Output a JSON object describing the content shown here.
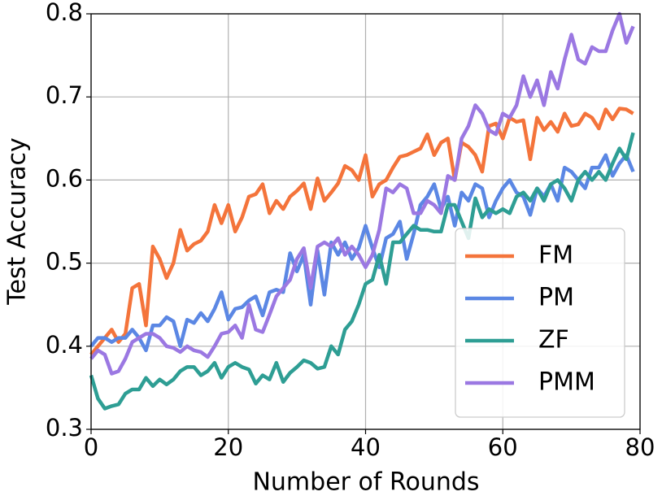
{
  "chart_data": {
    "type": "line",
    "xlabel": "Number of Rounds",
    "ylabel": "Test Accuracy",
    "x": [
      0,
      1,
      2,
      3,
      4,
      5,
      6,
      7,
      8,
      9,
      10,
      11,
      12,
      13,
      14,
      15,
      16,
      17,
      18,
      19,
      20,
      21,
      22,
      23,
      24,
      25,
      26,
      27,
      28,
      29,
      30,
      31,
      32,
      33,
      34,
      35,
      36,
      37,
      38,
      39,
      40,
      41,
      42,
      43,
      44,
      45,
      46,
      47,
      48,
      49,
      50,
      51,
      52,
      53,
      54,
      55,
      56,
      57,
      58,
      59,
      60,
      61,
      62,
      63,
      64,
      65,
      66,
      67,
      68,
      69,
      70,
      71,
      72,
      73,
      74,
      75,
      76,
      77,
      78,
      79
    ],
    "series": [
      {
        "name": "FM",
        "color": "#f4743b",
        "values": [
          0.39,
          0.4,
          0.41,
          0.42,
          0.405,
          0.415,
          0.47,
          0.475,
          0.425,
          0.52,
          0.505,
          0.482,
          0.5,
          0.54,
          0.515,
          0.523,
          0.527,
          0.538,
          0.57,
          0.548,
          0.57,
          0.538,
          0.555,
          0.58,
          0.583,
          0.595,
          0.56,
          0.575,
          0.565,
          0.58,
          0.587,
          0.596,
          0.565,
          0.602,
          0.575,
          0.585,
          0.596,
          0.617,
          0.612,
          0.6,
          0.63,
          0.58,
          0.595,
          0.6,
          0.615,
          0.628,
          0.63,
          0.634,
          0.638,
          0.655,
          0.63,
          0.645,
          0.65,
          0.6,
          0.645,
          0.64,
          0.63,
          0.61,
          0.665,
          0.668,
          0.65,
          0.675,
          0.67,
          0.672,
          0.625,
          0.675,
          0.66,
          0.67,
          0.658,
          0.68,
          0.665,
          0.667,
          0.68,
          0.675,
          0.662,
          0.685,
          0.673,
          0.686,
          0.685,
          0.68
        ]
      },
      {
        "name": "PM",
        "color": "#5b87e4",
        "values": [
          0.4,
          0.41,
          0.41,
          0.405,
          0.41,
          0.41,
          0.42,
          0.41,
          0.395,
          0.425,
          0.425,
          0.435,
          0.43,
          0.4,
          0.432,
          0.428,
          0.44,
          0.43,
          0.445,
          0.465,
          0.432,
          0.445,
          0.447,
          0.455,
          0.46,
          0.437,
          0.465,
          0.468,
          0.465,
          0.512,
          0.49,
          0.51,
          0.45,
          0.515,
          0.462,
          0.525,
          0.51,
          0.525,
          0.505,
          0.518,
          0.545,
          0.518,
          0.495,
          0.53,
          0.535,
          0.55,
          0.505,
          0.535,
          0.57,
          0.58,
          0.595,
          0.565,
          0.58,
          0.545,
          0.585,
          0.575,
          0.595,
          0.59,
          0.555,
          0.575,
          0.59,
          0.6,
          0.585,
          0.58,
          0.558,
          0.59,
          0.58,
          0.595,
          0.575,
          0.615,
          0.61,
          0.6,
          0.59,
          0.615,
          0.615,
          0.63,
          0.605,
          0.62,
          0.63,
          0.61
        ]
      },
      {
        "name": "ZF",
        "color": "#2e9e94",
        "values": [
          0.365,
          0.337,
          0.325,
          0.328,
          0.33,
          0.343,
          0.348,
          0.348,
          0.362,
          0.352,
          0.36,
          0.354,
          0.36,
          0.37,
          0.375,
          0.375,
          0.365,
          0.37,
          0.38,
          0.362,
          0.375,
          0.38,
          0.375,
          0.372,
          0.355,
          0.365,
          0.36,
          0.38,
          0.357,
          0.368,
          0.375,
          0.383,
          0.38,
          0.373,
          0.375,
          0.4,
          0.39,
          0.42,
          0.43,
          0.45,
          0.475,
          0.48,
          0.51,
          0.475,
          0.525,
          0.525,
          0.535,
          0.545,
          0.54,
          0.54,
          0.538,
          0.538,
          0.57,
          0.57,
          0.55,
          0.53,
          0.578,
          0.555,
          0.565,
          0.56,
          0.565,
          0.56,
          0.58,
          0.585,
          0.575,
          0.59,
          0.575,
          0.595,
          0.6,
          0.59,
          0.575,
          0.6,
          0.61,
          0.6,
          0.61,
          0.6,
          0.62,
          0.638,
          0.625,
          0.657
        ]
      },
      {
        "name": "PMM",
        "color": "#9b78e2",
        "values": [
          0.385,
          0.395,
          0.39,
          0.367,
          0.37,
          0.385,
          0.405,
          0.41,
          0.415,
          0.415,
          0.41,
          0.4,
          0.398,
          0.393,
          0.4,
          0.395,
          0.393,
          0.387,
          0.4,
          0.415,
          0.417,
          0.425,
          0.41,
          0.45,
          0.42,
          0.417,
          0.438,
          0.46,
          0.47,
          0.48,
          0.505,
          0.518,
          0.47,
          0.52,
          0.525,
          0.52,
          0.53,
          0.51,
          0.52,
          0.51,
          0.495,
          0.51,
          0.54,
          0.59,
          0.585,
          0.595,
          0.59,
          0.56,
          0.56,
          0.575,
          0.57,
          0.56,
          0.605,
          0.6,
          0.65,
          0.665,
          0.69,
          0.68,
          0.66,
          0.655,
          0.68,
          0.675,
          0.69,
          0.725,
          0.7,
          0.72,
          0.69,
          0.73,
          0.71,
          0.745,
          0.775,
          0.745,
          0.74,
          0.76,
          0.755,
          0.755,
          0.78,
          0.8,
          0.765,
          0.785
        ]
      }
    ],
    "xlim": [
      0,
      80
    ],
    "xticks": [
      0,
      20,
      40,
      60,
      80
    ],
    "ylim": [
      0.3,
      0.8
    ],
    "yticks": [
      0.3,
      0.4,
      0.5,
      0.6,
      0.7,
      0.8
    ],
    "grid": true,
    "legend": "lower right"
  }
}
